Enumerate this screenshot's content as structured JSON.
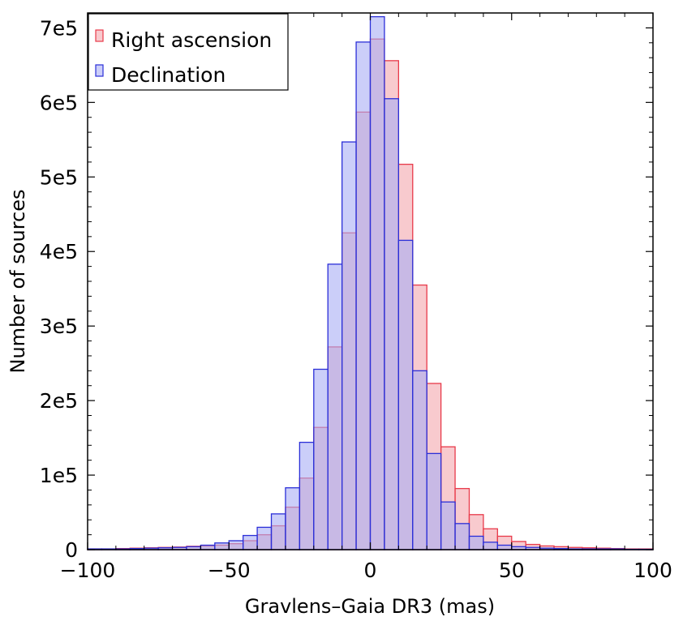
{
  "chart_data": {
    "type": "bar",
    "subtype": "overlaid-histogram",
    "xlabel": "Gravlens–Gaia DR3 (mas)",
    "ylabel": "Number of sources",
    "xlim": [
      -100,
      100
    ],
    "ylim": [
      0,
      720000
    ],
    "bin_width": 5,
    "x_ticks": [
      {
        "value": -100,
        "label": "−100"
      },
      {
        "value": -50,
        "label": "−50"
      },
      {
        "value": 0,
        "label": "0"
      },
      {
        "value": 50,
        "label": "50"
      },
      {
        "value": 100,
        "label": "100"
      }
    ],
    "y_ticks": [
      {
        "value": 0,
        "label": "0"
      },
      {
        "value": 100000,
        "label": "1e5"
      },
      {
        "value": 200000,
        "label": "2e5"
      },
      {
        "value": 300000,
        "label": "3e5"
      },
      {
        "value": 400000,
        "label": "4e5"
      },
      {
        "value": 500000,
        "label": "5e5"
      },
      {
        "value": 600000,
        "label": "6e5"
      },
      {
        "value": 700000,
        "label": "7e5"
      }
    ],
    "legend_position": "top-left",
    "series": [
      {
        "name": "Right ascension",
        "fill": "#f4a6ad",
        "stroke": "#e83a4a",
        "fill_opacity": 0.6,
        "bins": [
          [
            -100,
            1000
          ],
          [
            -95,
            1000
          ],
          [
            -90,
            1500
          ],
          [
            -85,
            2000
          ],
          [
            -80,
            2500
          ],
          [
            -75,
            3000
          ],
          [
            -70,
            3500
          ],
          [
            -65,
            4500
          ],
          [
            -60,
            5000
          ],
          [
            -55,
            6000
          ],
          [
            -50,
            8000
          ],
          [
            -45,
            12000
          ],
          [
            -40,
            20000
          ],
          [
            -35,
            32000
          ],
          [
            -30,
            57000
          ],
          [
            -25,
            96000
          ],
          [
            -20,
            164000
          ],
          [
            -15,
            272000
          ],
          [
            -10,
            425000
          ],
          [
            -5,
            587000
          ],
          [
            0,
            685000
          ],
          [
            5,
            656000
          ],
          [
            10,
            517000
          ],
          [
            15,
            355000
          ],
          [
            20,
            223000
          ],
          [
            25,
            138000
          ],
          [
            30,
            82000
          ],
          [
            35,
            47000
          ],
          [
            40,
            28000
          ],
          [
            45,
            18000
          ],
          [
            50,
            11000
          ],
          [
            55,
            7000
          ],
          [
            60,
            5000
          ],
          [
            65,
            4000
          ],
          [
            70,
            3000
          ],
          [
            75,
            2500
          ],
          [
            80,
            2000
          ],
          [
            85,
            1500
          ],
          [
            90,
            1000
          ],
          [
            95,
            1000
          ]
        ]
      },
      {
        "name": "Declination",
        "fill": "#a9aef5",
        "stroke": "#2b2fd8",
        "fill_opacity": 0.6,
        "bins": [
          [
            -100,
            1000
          ],
          [
            -95,
            1000
          ],
          [
            -90,
            1000
          ],
          [
            -85,
            1500
          ],
          [
            -80,
            2000
          ],
          [
            -75,
            2500
          ],
          [
            -70,
            3000
          ],
          [
            -65,
            4000
          ],
          [
            -60,
            6000
          ],
          [
            -55,
            9000
          ],
          [
            -50,
            12000
          ],
          [
            -45,
            19000
          ],
          [
            -40,
            30000
          ],
          [
            -35,
            48000
          ],
          [
            -30,
            83000
          ],
          [
            -25,
            144000
          ],
          [
            -20,
            242000
          ],
          [
            -15,
            383000
          ],
          [
            -10,
            547000
          ],
          [
            -5,
            681000
          ],
          [
            0,
            715000
          ],
          [
            5,
            605000
          ],
          [
            10,
            415000
          ],
          [
            15,
            240000
          ],
          [
            20,
            129000
          ],
          [
            25,
            64000
          ],
          [
            30,
            35000
          ],
          [
            35,
            18000
          ],
          [
            40,
            10000
          ],
          [
            45,
            6000
          ],
          [
            50,
            4000
          ],
          [
            55,
            3000
          ],
          [
            60,
            2000
          ],
          [
            65,
            1500
          ],
          [
            70,
            1000
          ],
          [
            75,
            1000
          ],
          [
            80,
            1000
          ],
          [
            85,
            1000
          ],
          [
            90,
            500
          ],
          [
            95,
            500
          ]
        ]
      }
    ]
  }
}
